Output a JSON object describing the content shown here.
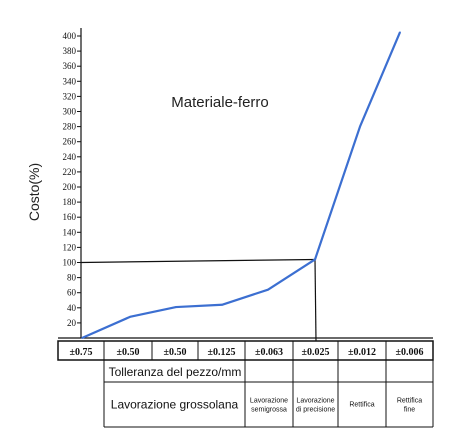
{
  "chart_data": {
    "type": "line",
    "title": "Materiale-ferro",
    "ylabel": "Costo(%)",
    "xlabel": "Tolleranza del pezzo/mm",
    "ylim": [
      0,
      410
    ],
    "yticks": [
      20,
      40,
      60,
      80,
      100,
      120,
      140,
      160,
      180,
      200,
      220,
      240,
      260,
      280,
      300,
      320,
      340,
      360,
      380,
      400
    ],
    "categories": [
      "±0.75",
      "±0.50",
      "±0.50",
      "±0.125",
      "±0.063",
      "±0.025",
      "±0.012",
      "±0.006"
    ],
    "series": [
      {
        "color": "#3c6fd1",
        "points": [
          {
            "x": "±0.75",
            "y": 0
          },
          {
            "x": "±0.50",
            "y": 28
          },
          {
            "x": "±0.50",
            "y": 41
          },
          {
            "x": "±0.125",
            "y": 44
          },
          {
            "x": "±0.063",
            "y": 64
          },
          {
            "x": "±0.025",
            "y": 104
          },
          {
            "x": "±0.012",
            "y": 280
          },
          {
            "x": "±0.006",
            "y": 405
          }
        ]
      }
    ],
    "reference_point": {
      "x": "±0.025",
      "y": 100
    },
    "processes": [
      {
        "label": "Lavorazione grossolana",
        "span": [
          "±0.75",
          "±0.125"
        ]
      },
      {
        "label": "Lavorazione semigrossa",
        "span": [
          "±0.063",
          "±0.063"
        ]
      },
      {
        "label": "Lavorazione di precisione",
        "span": [
          "±0.025",
          "±0.025"
        ]
      },
      {
        "label": "Rettifica",
        "span": [
          "±0.012",
          "±0.012"
        ]
      },
      {
        "label": "Rettifica fine",
        "span": [
          "±0.006",
          "±0.006"
        ]
      }
    ],
    "grid": false,
    "legend": "none"
  }
}
